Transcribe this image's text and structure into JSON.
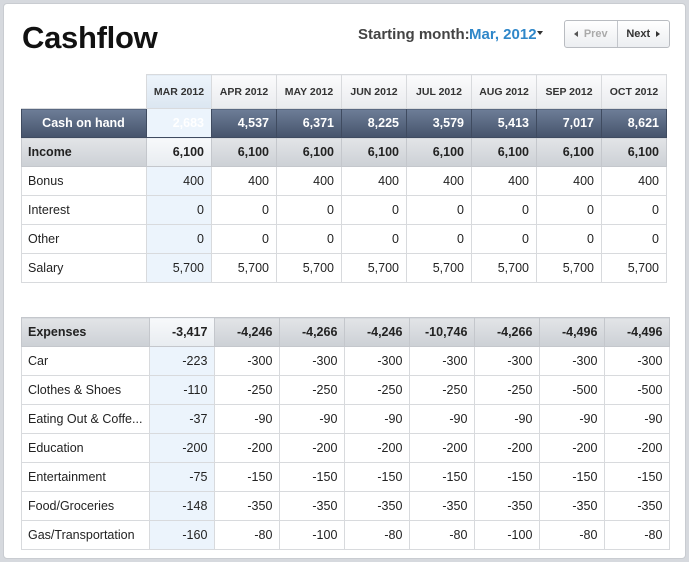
{
  "header": {
    "title": "Cashflow",
    "starting_label": "Starting month:",
    "starting_value": "Mar, 2012",
    "prev_label": "Prev",
    "next_label": "Next"
  },
  "colors": {
    "accent": "#2f87c9",
    "cash_row": "#45536b",
    "selected_column": "#ecf4fc"
  },
  "months": [
    "MAR 2012",
    "APR 2012",
    "MAY 2012",
    "JUN 2012",
    "JUL 2012",
    "AUG 2012",
    "SEP 2012",
    "OCT 2012"
  ],
  "cash_on_hand": {
    "label": "Cash on hand",
    "values": [
      "2,683",
      "4,537",
      "6,371",
      "8,225",
      "3,579",
      "5,413",
      "7,017",
      "8,621"
    ]
  },
  "income": {
    "label": "Income",
    "totals": [
      "6,100",
      "6,100",
      "6,100",
      "6,100",
      "6,100",
      "6,100",
      "6,100",
      "6,100"
    ],
    "rows": [
      {
        "label": "Bonus",
        "values": [
          "400",
          "400",
          "400",
          "400",
          "400",
          "400",
          "400",
          "400"
        ]
      },
      {
        "label": "Interest",
        "values": [
          "0",
          "0",
          "0",
          "0",
          "0",
          "0",
          "0",
          "0"
        ]
      },
      {
        "label": "Other",
        "values": [
          "0",
          "0",
          "0",
          "0",
          "0",
          "0",
          "0",
          "0"
        ]
      },
      {
        "label": "Salary",
        "values": [
          "5,700",
          "5,700",
          "5,700",
          "5,700",
          "5,700",
          "5,700",
          "5,700",
          "5,700"
        ]
      }
    ]
  },
  "expenses": {
    "label": "Expenses",
    "totals": [
      "-3,417",
      "-4,246",
      "-4,266",
      "-4,246",
      "-10,746",
      "-4,266",
      "-4,496",
      "-4,496"
    ],
    "rows": [
      {
        "label": "Car",
        "values": [
          "-223",
          "-300",
          "-300",
          "-300",
          "-300",
          "-300",
          "-300",
          "-300"
        ]
      },
      {
        "label": "Clothes & Shoes",
        "values": [
          "-110",
          "-250",
          "-250",
          "-250",
          "-250",
          "-250",
          "-500",
          "-500"
        ]
      },
      {
        "label": "Eating Out & Coffe...",
        "values": [
          "-37",
          "-90",
          "-90",
          "-90",
          "-90",
          "-90",
          "-90",
          "-90"
        ]
      },
      {
        "label": "Education",
        "values": [
          "-200",
          "-200",
          "-200",
          "-200",
          "-200",
          "-200",
          "-200",
          "-200"
        ]
      },
      {
        "label": "Entertainment",
        "values": [
          "-75",
          "-150",
          "-150",
          "-150",
          "-150",
          "-150",
          "-150",
          "-150"
        ]
      },
      {
        "label": "Food/Groceries",
        "values": [
          "-148",
          "-350",
          "-350",
          "-350",
          "-350",
          "-350",
          "-350",
          "-350"
        ]
      },
      {
        "label": "Gas/Transportation",
        "values": [
          "-160",
          "-80",
          "-100",
          "-80",
          "-80",
          "-100",
          "-80",
          "-80"
        ]
      }
    ]
  }
}
